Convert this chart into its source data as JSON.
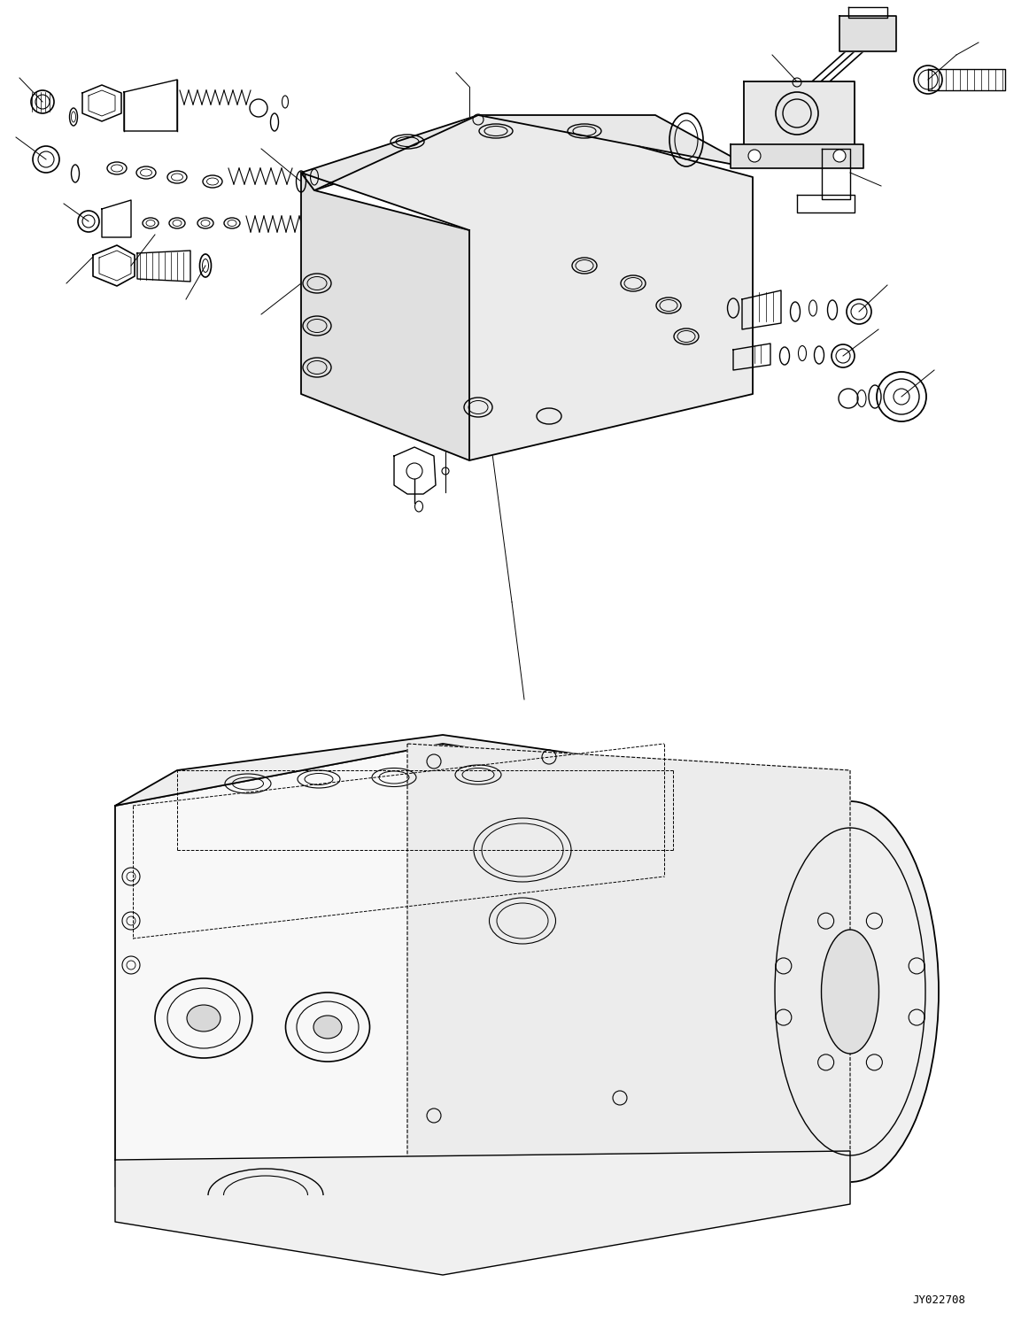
{
  "title": "",
  "watermark": "JY022708",
  "bg_color": "#ffffff",
  "line_color": "#000000",
  "figsize": [
    11.62,
    14.92
  ],
  "dpi": 100
}
